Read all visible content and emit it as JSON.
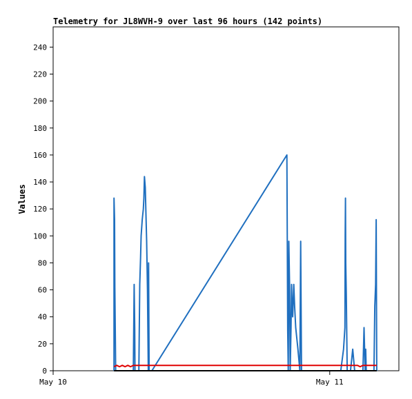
{
  "chart_data": {
    "type": "line",
    "title": "Telemetry for JL8WVH-9 over last 96 hours (142 points)",
    "xlabel": "",
    "ylabel": "Values",
    "ylim": [
      0,
      255
    ],
    "yticks": [
      0,
      20,
      40,
      60,
      80,
      100,
      120,
      140,
      160,
      180,
      200,
      220,
      240
    ],
    "xlim": [
      0,
      1.25
    ],
    "xticks": [
      {
        "x": 0,
        "label": "May 10"
      },
      {
        "x": 1,
        "label": "May 11"
      }
    ],
    "grid": false,
    "legend": "none",
    "series": [
      {
        "color": "#1f6fbf",
        "points": [
          [
            0.22,
            0
          ],
          [
            0.22,
            128
          ],
          [
            0.222,
            112
          ],
          [
            0.223,
            62
          ],
          [
            0.226,
            0
          ],
          [
            0.29,
            0
          ],
          [
            0.293,
            64
          ],
          [
            0.295,
            32
          ],
          [
            0.296,
            0
          ],
          [
            0.31,
            0
          ],
          [
            0.313,
            64
          ],
          [
            0.316,
            84
          ],
          [
            0.318,
            100
          ],
          [
            0.322,
            112
          ],
          [
            0.326,
            120
          ],
          [
            0.328,
            128
          ],
          [
            0.33,
            144
          ],
          [
            0.333,
            136
          ],
          [
            0.336,
            112
          ],
          [
            0.338,
            96
          ],
          [
            0.341,
            60
          ],
          [
            0.344,
            0
          ],
          [
            0.345,
            80
          ],
          [
            0.347,
            0
          ],
          [
            0.357,
            0
          ],
          [
            0.845,
            160
          ],
          [
            0.848,
            30
          ],
          [
            0.85,
            0
          ],
          [
            0.852,
            96
          ],
          [
            0.855,
            60
          ],
          [
            0.857,
            0
          ],
          [
            0.86,
            32
          ],
          [
            0.862,
            64
          ],
          [
            0.864,
            48
          ],
          [
            0.866,
            40
          ],
          [
            0.87,
            64
          ],
          [
            0.873,
            48
          ],
          [
            0.877,
            32
          ],
          [
            0.885,
            16
          ],
          [
            0.892,
            0
          ],
          [
            0.895,
            96
          ],
          [
            0.898,
            0
          ],
          [
            1.04,
            0
          ],
          [
            1.05,
            16
          ],
          [
            1.055,
            32
          ],
          [
            1.056,
            100
          ],
          [
            1.057,
            128
          ],
          [
            1.058,
            80
          ],
          [
            1.06,
            56
          ],
          [
            1.063,
            0
          ],
          [
            1.075,
            0
          ],
          [
            1.083,
            16
          ],
          [
            1.09,
            0
          ],
          [
            1.12,
            0
          ],
          [
            1.124,
            32
          ],
          [
            1.126,
            16
          ],
          [
            1.128,
            0
          ],
          [
            1.13,
            16
          ],
          [
            1.132,
            0
          ],
          [
            1.16,
            0
          ],
          [
            1.163,
            48
          ],
          [
            1.166,
            64
          ],
          [
            1.168,
            112
          ],
          [
            1.17,
            0
          ]
        ]
      },
      {
        "color": "#e00000",
        "points": [
          [
            0.22,
            3
          ],
          [
            0.23,
            4
          ],
          [
            0.24,
            3
          ],
          [
            0.25,
            4
          ],
          [
            0.26,
            3
          ],
          [
            0.27,
            4
          ],
          [
            0.28,
            3
          ],
          [
            0.29,
            4
          ],
          [
            0.35,
            4
          ],
          [
            0.85,
            4
          ],
          [
            1.04,
            4
          ],
          [
            1.1,
            4
          ],
          [
            1.11,
            3
          ],
          [
            1.12,
            4
          ],
          [
            1.17,
            4
          ]
        ]
      },
      {
        "color": "#000000",
        "points": [
          [
            0.22,
            0
          ],
          [
            1.17,
            0
          ]
        ]
      }
    ]
  }
}
